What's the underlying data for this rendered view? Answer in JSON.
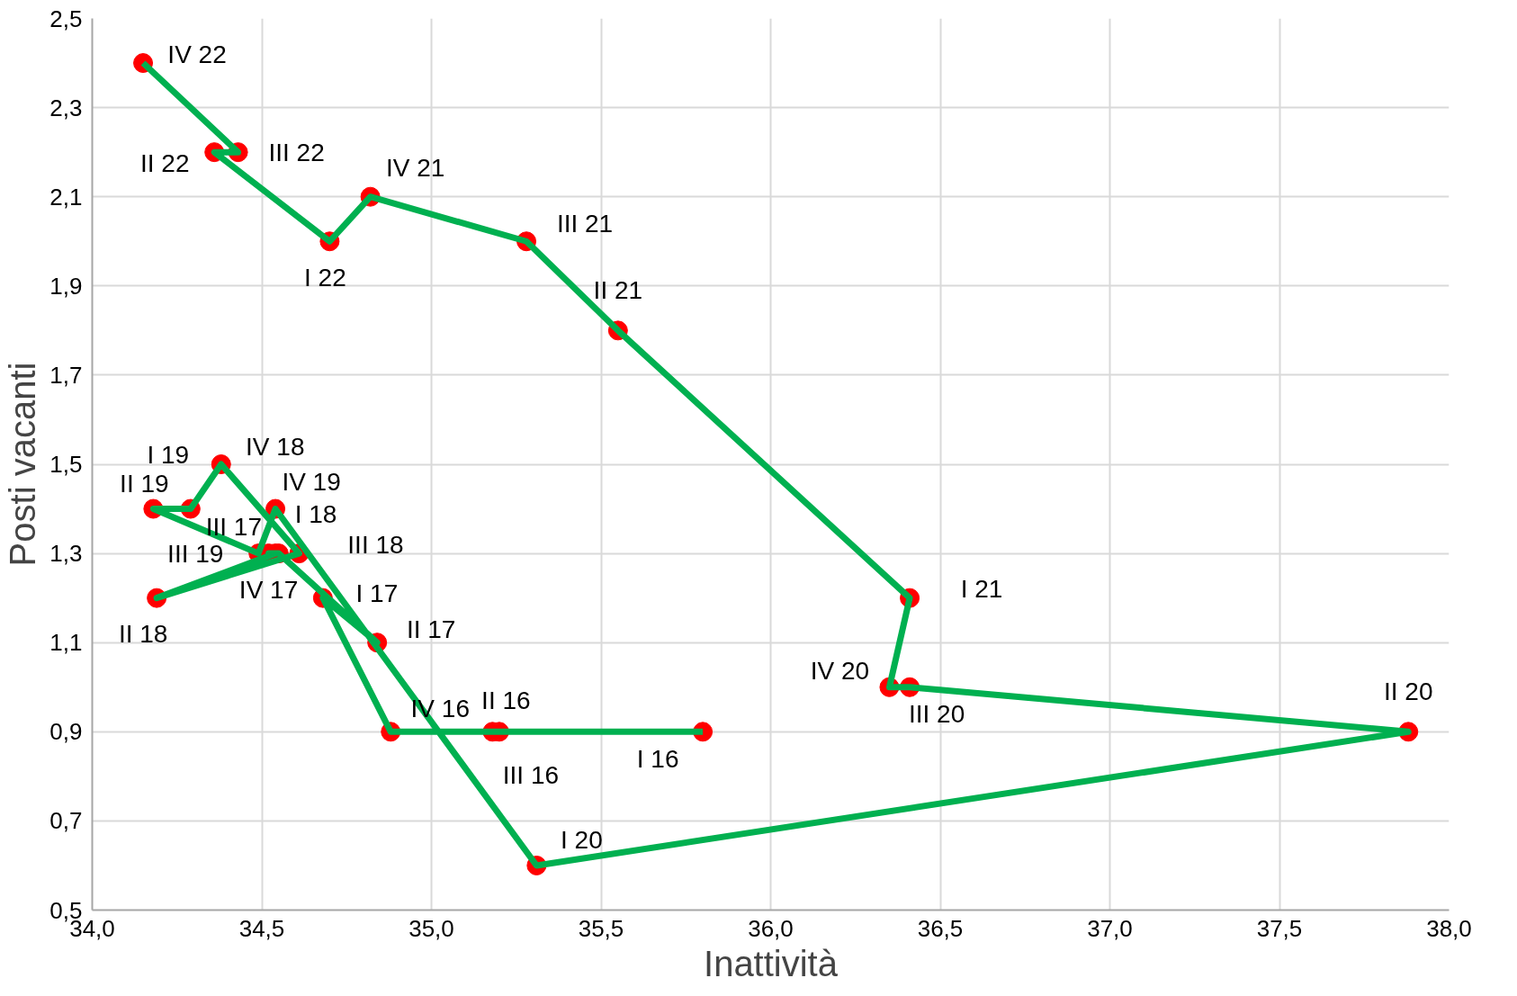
{
  "chart_data": {
    "type": "line",
    "xlabel": "Inattività",
    "ylabel": "Posti vacanti",
    "xlim": [
      34.0,
      38.0
    ],
    "ylim": [
      0.5,
      2.5
    ],
    "xticks": [
      {
        "value": 34.0,
        "label": "34,0"
      },
      {
        "value": 34.5,
        "label": "34,5"
      },
      {
        "value": 35.0,
        "label": "35,0"
      },
      {
        "value": 35.5,
        "label": "35,5"
      },
      {
        "value": 36.0,
        "label": "36,0"
      },
      {
        "value": 36.5,
        "label": "36,5"
      },
      {
        "value": 37.0,
        "label": "37,0"
      },
      {
        "value": 37.5,
        "label": "37,5"
      },
      {
        "value": 38.0,
        "label": "38,0"
      }
    ],
    "yticks": [
      {
        "value": 0.5,
        "label": "0,5"
      },
      {
        "value": 0.7,
        "label": "0,7"
      },
      {
        "value": 0.9,
        "label": "0,9"
      },
      {
        "value": 1.1,
        "label": "1,1"
      },
      {
        "value": 1.3,
        "label": "1,3"
      },
      {
        "value": 1.5,
        "label": "1,5"
      },
      {
        "value": 1.7,
        "label": "1,7"
      },
      {
        "value": 1.9,
        "label": "1,9"
      },
      {
        "value": 2.1,
        "label": "2,1"
      },
      {
        "value": 2.3,
        "label": "2,3"
      },
      {
        "value": 2.5,
        "label": "2,5"
      }
    ],
    "grid": true,
    "marker": "circle",
    "line_style": "solid",
    "series": [
      {
        "color": "#00b050",
        "colors": [
          "#ff0000",
          "#ff0000",
          "#ff0000",
          "#ff0000",
          "#ff0000",
          "#ff0000",
          "#ff0000",
          "#ff0000",
          "#ff0000",
          "#ff0000",
          "#ff0000",
          "#ff0000",
          "#ff0000",
          "#ff0000",
          "#ff0000",
          "#ff0000",
          "#ff0000",
          "#ff0000",
          "#ff0000",
          "#ff0000",
          "#ff0000",
          "#ff0000",
          "#ff0000",
          "#ff0000",
          "#ff0000",
          "#ff0000",
          "#ff0000",
          "#ff0000"
        ],
        "x": [
          35.8,
          35.18,
          35.2,
          34.88,
          34.68,
          34.84,
          34.55,
          34.52,
          34.54,
          34.19,
          34.61,
          34.38,
          34.29,
          34.18,
          34.49,
          34.54,
          35.31,
          37.88,
          36.41,
          36.35,
          36.41,
          35.55,
          35.28,
          34.82,
          34.7,
          34.36,
          34.43,
          34.15
        ],
        "values": [
          0.9,
          0.9,
          0.9,
          0.9,
          1.2,
          1.1,
          1.3,
          1.3,
          1.3,
          1.2,
          1.3,
          1.5,
          1.4,
          1.4,
          1.3,
          1.4,
          0.6,
          0.9,
          1.0,
          1.0,
          1.2,
          1.8,
          2.0,
          2.1,
          2.0,
          2.2,
          2.2,
          2.4
        ],
        "value_labels": [
          "I 16",
          "II 16",
          "III 16",
          "IV 16",
          "I 17",
          "II 17",
          "III 17",
          "IV 17",
          "I 18",
          "II 18",
          "III 18",
          "IV 18",
          "I 19",
          "II 19",
          "III 19",
          "IV 19",
          "I 20",
          "II 20",
          "III 20",
          "IV 20",
          "I 21",
          "II 21",
          "III 21",
          "IV 21",
          "I 22",
          "II 22",
          "III 22",
          "IV 22"
        ]
      }
    ]
  }
}
